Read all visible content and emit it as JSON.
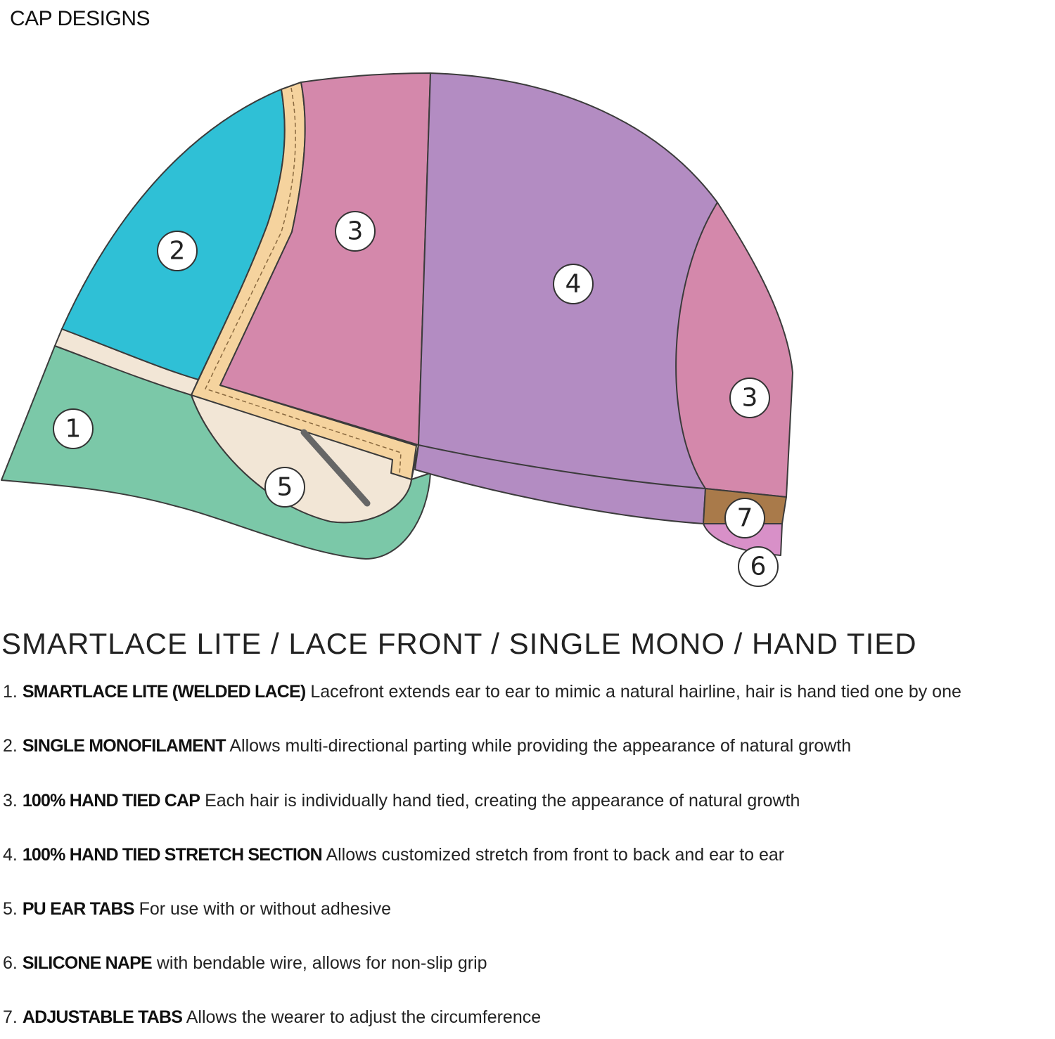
{
  "title": "CAP DESIGNS",
  "diagram": {
    "colors": {
      "lace_front": "#7bc8a8",
      "monofilament": "#2fc0d6",
      "hand_tied": "#d488ab",
      "stretch": "#b38cc2",
      "ear_tab": "#f2e6d6",
      "welded_lace": "#f5d39e",
      "nape": "#d890c8",
      "adjustable_tab": "#a97a4a",
      "outline": "#3b3b3b"
    },
    "labels": [
      "1",
      "2",
      "3",
      "4",
      "3",
      "5",
      "7",
      "6"
    ]
  },
  "heading": "SMARTLACE LITE / LACE FRONT / SINGLE MONO / HAND TIED",
  "items": [
    {
      "num": "1.",
      "name": "SMARTLACE LITE (WELDED LACE)",
      "desc": "Lacefront extends ear to ear to mimic a natural hairline, hair is hand tied one by one"
    },
    {
      "num": "2.",
      "name": "SINGLE MONOFILAMENT",
      "desc": "Allows multi-directional parting while providing the appearance of natural growth"
    },
    {
      "num": "3.",
      "name": "100% HAND TIED CAP",
      "desc": "Each hair is individually hand tied, creating the appearance of natural growth"
    },
    {
      "num": "4.",
      "name": "100% HAND TIED STRETCH SECTION",
      "desc": "Allows customized stretch from front to back and ear to ear"
    },
    {
      "num": "5.",
      "name": "PU EAR TABS",
      "desc": "For use with or without adhesive"
    },
    {
      "num": "6.",
      "name": "SILICONE NAPE",
      "desc": "with bendable wire, allows for non-slip grip"
    },
    {
      "num": "7.",
      "name": "ADJUSTABLE TABS",
      "desc": "Allows the wearer to adjust the circumference"
    }
  ]
}
